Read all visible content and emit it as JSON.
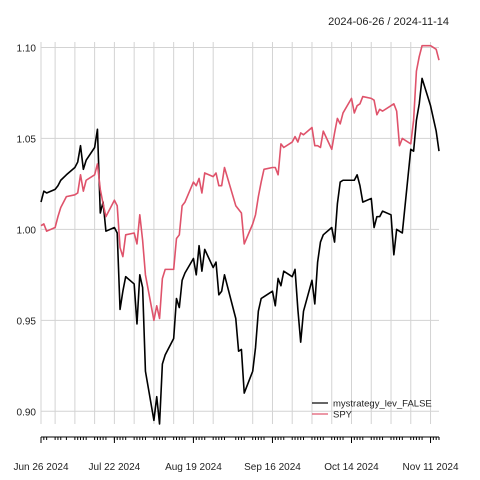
{
  "header": {
    "date_range": "2024-06-26 / 2024-11-14"
  },
  "colors": {
    "strategy": "#000000",
    "spy": "#df536b",
    "grid": "#d3d3d3",
    "axis": "#000000"
  },
  "chart_data": {
    "type": "line",
    "title": "",
    "xlabel": "",
    "ylabel": "",
    "x_range": [
      "2024-06-26",
      "2024-11-14"
    ],
    "ylim": [
      0.893,
      1.103
    ],
    "grid": true,
    "legend_position": "bottom-right",
    "y_ticks": [
      0.9,
      0.95,
      1.0,
      1.05,
      1.1
    ],
    "x_tick_labels": [
      {
        "date": "2024-06-26",
        "label": "Jun 26 2024"
      },
      {
        "date": "2024-07-22",
        "label": "Jul 22 2024"
      },
      {
        "date": "2024-08-19",
        "label": "Aug 19 2024"
      },
      {
        "date": "2024-09-16",
        "label": "Sep 16 2024"
      },
      {
        "date": "2024-10-14",
        "label": "Oct 14 2024"
      },
      {
        "date": "2024-11-11",
        "label": "Nov 11 2024"
      }
    ],
    "series": [
      {
        "name": "mystrategy_lev_FALSE",
        "color": "#000000",
        "points": [
          [
            "2024-06-26",
            1.015
          ],
          [
            "2024-06-27",
            1.021
          ],
          [
            "2024-06-28",
            1.02
          ],
          [
            "2024-07-01",
            1.022
          ],
          [
            "2024-07-02",
            1.024
          ],
          [
            "2024-07-03",
            1.027
          ],
          [
            "2024-07-05",
            1.03
          ],
          [
            "2024-07-08",
            1.034
          ],
          [
            "2024-07-09",
            1.037
          ],
          [
            "2024-07-10",
            1.046
          ],
          [
            "2024-07-11",
            1.033
          ],
          [
            "2024-07-12",
            1.038
          ],
          [
            "2024-07-15",
            1.045
          ],
          [
            "2024-07-16",
            1.055
          ],
          [
            "2024-07-17",
            1.009
          ],
          [
            "2024-07-18",
            1.015
          ],
          [
            "2024-07-19",
            0.999
          ],
          [
            "2024-07-22",
            1.001
          ],
          [
            "2024-07-23",
            0.998
          ],
          [
            "2024-07-24",
            0.956
          ],
          [
            "2024-07-25",
            0.966
          ],
          [
            "2024-07-26",
            0.974
          ],
          [
            "2024-07-29",
            0.97
          ],
          [
            "2024-07-30",
            0.948
          ],
          [
            "2024-07-31",
            0.975
          ],
          [
            "2024-08-01",
            0.968
          ],
          [
            "2024-08-02",
            0.922
          ],
          [
            "2024-08-05",
            0.895
          ],
          [
            "2024-08-06",
            0.908
          ],
          [
            "2024-08-07",
            0.893
          ],
          [
            "2024-08-08",
            0.926
          ],
          [
            "2024-08-09",
            0.931
          ],
          [
            "2024-08-12",
            0.94
          ],
          [
            "2024-08-13",
            0.962
          ],
          [
            "2024-08-14",
            0.957
          ],
          [
            "2024-08-15",
            0.972
          ],
          [
            "2024-08-16",
            0.976
          ],
          [
            "2024-08-19",
            0.984
          ],
          [
            "2024-08-20",
            0.975
          ],
          [
            "2024-08-21",
            0.991
          ],
          [
            "2024-08-22",
            0.977
          ],
          [
            "2024-08-23",
            0.989
          ],
          [
            "2024-08-26",
            0.979
          ],
          [
            "2024-08-27",
            0.982
          ],
          [
            "2024-08-28",
            0.964
          ],
          [
            "2024-08-29",
            0.966
          ],
          [
            "2024-08-30",
            0.975
          ],
          [
            "2024-09-03",
            0.951
          ],
          [
            "2024-09-04",
            0.933
          ],
          [
            "2024-09-05",
            0.934
          ],
          [
            "2024-09-06",
            0.91
          ],
          [
            "2024-09-09",
            0.922
          ],
          [
            "2024-09-10",
            0.935
          ],
          [
            "2024-09-11",
            0.955
          ],
          [
            "2024-09-12",
            0.962
          ],
          [
            "2024-09-13",
            0.963
          ],
          [
            "2024-09-16",
            0.966
          ],
          [
            "2024-09-17",
            0.958
          ],
          [
            "2024-09-18",
            0.973
          ],
          [
            "2024-09-19",
            0.969
          ],
          [
            "2024-09-20",
            0.977
          ],
          [
            "2024-09-23",
            0.974
          ],
          [
            "2024-09-24",
            0.978
          ],
          [
            "2024-09-25",
            0.956
          ],
          [
            "2024-09-26",
            0.938
          ],
          [
            "2024-09-27",
            0.955
          ],
          [
            "2024-09-30",
            0.972
          ],
          [
            "2024-10-01",
            0.959
          ],
          [
            "2024-10-02",
            0.982
          ],
          [
            "2024-10-03",
            0.993
          ],
          [
            "2024-10-04",
            0.997
          ],
          [
            "2024-10-07",
            1.001
          ],
          [
            "2024-10-08",
            0.993
          ],
          [
            "2024-10-09",
            1.014
          ],
          [
            "2024-10-10",
            1.026
          ],
          [
            "2024-10-11",
            1.027
          ],
          [
            "2024-10-14",
            1.027
          ],
          [
            "2024-10-15",
            1.027
          ],
          [
            "2024-10-16",
            1.03
          ],
          [
            "2024-10-17",
            1.024
          ],
          [
            "2024-10-18",
            1.015
          ],
          [
            "2024-10-21",
            1.017
          ],
          [
            "2024-10-22",
            1.001
          ],
          [
            "2024-10-23",
            1.007
          ],
          [
            "2024-10-24",
            1.007
          ],
          [
            "2024-10-25",
            1.01
          ],
          [
            "2024-10-28",
            1.008
          ],
          [
            "2024-10-29",
            0.986
          ],
          [
            "2024-10-30",
            1.0
          ],
          [
            "2024-10-31",
            0.999
          ],
          [
            "2024-11-01",
            0.998
          ],
          [
            "2024-11-04",
            1.044
          ],
          [
            "2024-11-05",
            1.043
          ],
          [
            "2024-11-06",
            1.06
          ],
          [
            "2024-11-07",
            1.069
          ],
          [
            "2024-11-08",
            1.083
          ],
          [
            "2024-11-11",
            1.068
          ],
          [
            "2024-11-12",
            1.061
          ],
          [
            "2024-11-13",
            1.054
          ],
          [
            "2024-11-14",
            1.043
          ]
        ]
      },
      {
        "name": "SPY",
        "color": "#df536b",
        "points": [
          [
            "2024-06-26",
            1.002
          ],
          [
            "2024-06-27",
            1.003
          ],
          [
            "2024-06-28",
            0.999
          ],
          [
            "2024-07-01",
            1.001
          ],
          [
            "2024-07-02",
            1.007
          ],
          [
            "2024-07-03",
            1.012
          ],
          [
            "2024-07-05",
            1.018
          ],
          [
            "2024-07-08",
            1.019
          ],
          [
            "2024-07-09",
            1.02
          ],
          [
            "2024-07-10",
            1.03
          ],
          [
            "2024-07-11",
            1.021
          ],
          [
            "2024-07-12",
            1.027
          ],
          [
            "2024-07-15",
            1.03
          ],
          [
            "2024-07-16",
            1.036
          ],
          [
            "2024-07-17",
            1.022
          ],
          [
            "2024-07-18",
            1.014
          ],
          [
            "2024-07-19",
            1.007
          ],
          [
            "2024-07-22",
            1.016
          ],
          [
            "2024-07-23",
            1.013
          ],
          [
            "2024-07-24",
            0.99
          ],
          [
            "2024-07-25",
            0.985
          ],
          [
            "2024-07-26",
            0.997
          ],
          [
            "2024-07-29",
            0.998
          ],
          [
            "2024-07-30",
            0.992
          ],
          [
            "2024-07-31",
            1.008
          ],
          [
            "2024-08-01",
            0.994
          ],
          [
            "2024-08-02",
            0.975
          ],
          [
            "2024-08-05",
            0.95
          ],
          [
            "2024-08-06",
            0.958
          ],
          [
            "2024-08-07",
            0.951
          ],
          [
            "2024-08-08",
            0.973
          ],
          [
            "2024-08-09",
            0.978
          ],
          [
            "2024-08-12",
            0.978
          ],
          [
            "2024-08-13",
            0.995
          ],
          [
            "2024-08-14",
            0.997
          ],
          [
            "2024-08-15",
            1.013
          ],
          [
            "2024-08-16",
            1.015
          ],
          [
            "2024-08-19",
            1.026
          ],
          [
            "2024-08-20",
            1.024
          ],
          [
            "2024-08-21",
            1.028
          ],
          [
            "2024-08-22",
            1.02
          ],
          [
            "2024-08-23",
            1.031
          ],
          [
            "2024-08-26",
            1.029
          ],
          [
            "2024-08-27",
            1.031
          ],
          [
            "2024-08-28",
            1.024
          ],
          [
            "2024-08-29",
            1.024
          ],
          [
            "2024-08-30",
            1.034
          ],
          [
            "2024-09-03",
            1.013
          ],
          [
            "2024-09-04",
            1.011
          ],
          [
            "2024-09-05",
            1.009
          ],
          [
            "2024-09-06",
            0.992
          ],
          [
            "2024-09-09",
            1.003
          ],
          [
            "2024-09-10",
            1.008
          ],
          [
            "2024-09-11",
            1.018
          ],
          [
            "2024-09-12",
            1.026
          ],
          [
            "2024-09-13",
            1.033
          ],
          [
            "2024-09-16",
            1.034
          ],
          [
            "2024-09-17",
            1.034
          ],
          [
            "2024-09-18",
            1.03
          ],
          [
            "2024-09-19",
            1.047
          ],
          [
            "2024-09-20",
            1.045
          ],
          [
            "2024-09-23",
            1.048
          ],
          [
            "2024-09-24",
            1.051
          ],
          [
            "2024-09-25",
            1.048
          ],
          [
            "2024-09-26",
            1.053
          ],
          [
            "2024-09-27",
            1.052
          ],
          [
            "2024-09-30",
            1.056
          ],
          [
            "2024-10-01",
            1.046
          ],
          [
            "2024-10-02",
            1.046
          ],
          [
            "2024-10-03",
            1.045
          ],
          [
            "2024-10-04",
            1.054
          ],
          [
            "2024-10-07",
            1.044
          ],
          [
            "2024-10-08",
            1.053
          ],
          [
            "2024-10-09",
            1.061
          ],
          [
            "2024-10-10",
            1.058
          ],
          [
            "2024-10-11",
            1.064
          ],
          [
            "2024-10-14",
            1.072
          ],
          [
            "2024-10-15",
            1.064
          ],
          [
            "2024-10-16",
            1.068
          ],
          [
            "2024-10-17",
            1.069
          ],
          [
            "2024-10-18",
            1.073
          ],
          [
            "2024-10-21",
            1.072
          ],
          [
            "2024-10-22",
            1.071
          ],
          [
            "2024-10-23",
            1.063
          ],
          [
            "2024-10-24",
            1.066
          ],
          [
            "2024-10-25",
            1.065
          ],
          [
            "2024-10-28",
            1.068
          ],
          [
            "2024-10-29",
            1.069
          ],
          [
            "2024-10-30",
            1.065
          ],
          [
            "2024-10-31",
            1.046
          ],
          [
            "2024-11-01",
            1.05
          ],
          [
            "2024-11-04",
            1.047
          ],
          [
            "2024-11-05",
            1.06
          ],
          [
            "2024-11-06",
            1.087
          ],
          [
            "2024-11-07",
            1.095
          ],
          [
            "2024-11-08",
            1.101
          ],
          [
            "2024-11-11",
            1.101
          ],
          [
            "2024-11-12",
            1.1
          ],
          [
            "2024-11-13",
            1.099
          ],
          [
            "2024-11-14",
            1.093
          ]
        ]
      }
    ]
  }
}
